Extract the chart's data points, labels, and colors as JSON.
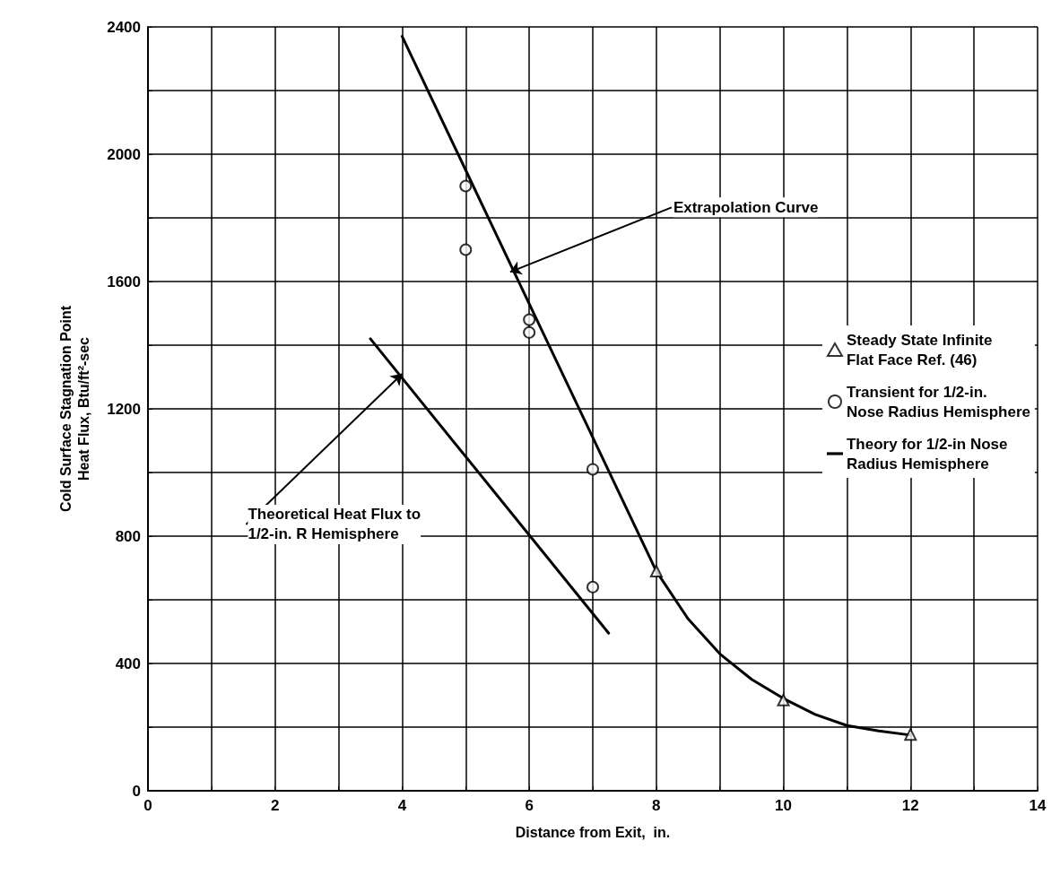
{
  "chart_data": {
    "type": "scatter",
    "xlabel": "Distance from Exit,  in.",
    "ylabel": "Cold Surface Stagnation Point\nHeat Flux, Btu/ft²-sec",
    "xlim": [
      0,
      14
    ],
    "ylim": [
      0,
      2400
    ],
    "xticks": [
      0,
      {
        "value": 1,
        "label": null
      },
      2,
      {
        "value": 3,
        "label": null
      },
      4,
      {
        "value": 5,
        "label": null
      },
      6,
      {
        "value": 7,
        "label": null
      },
      8,
      {
        "value": 9,
        "label": null
      },
      10,
      {
        "value": 11,
        "label": null
      },
      12,
      {
        "value": 13,
        "label": null
      },
      14
    ],
    "yticks": [
      0,
      {
        "value": 200,
        "label": null
      },
      400,
      {
        "value": 600,
        "label": null
      },
      800,
      {
        "value": 1000,
        "label": null
      },
      1200,
      {
        "value": 1400,
        "label": null
      },
      1600,
      {
        "value": 1800,
        "label": null
      },
      2000,
      {
        "value": 2200,
        "label": null
      },
      2400
    ],
    "grid": true,
    "legend": "right",
    "series": [
      {
        "name": "Steady State Infinite\nFlat Face Ref. (46)",
        "marker": "triangle",
        "color": "#000000",
        "x": [
          8,
          10,
          12
        ],
        "values": [
          690,
          285,
          177
        ]
      },
      {
        "name": "Transient for 1/2-in.\nNose Radius Hemisphere",
        "marker": "circle",
        "color": "#000000",
        "x": [
          5,
          5,
          6,
          6,
          7,
          7
        ],
        "values": [
          1900,
          1700,
          1480,
          1440,
          1010,
          640
        ]
      },
      {
        "name": "Theory for 1/2-in Nose\nRadius Hemisphere",
        "type": "line",
        "marker": "none",
        "color": "#000000",
        "x": [
          3.5,
          7.25
        ],
        "values": [
          1420,
          495
        ]
      },
      {
        "type": "line",
        "marker": "none",
        "color": "#000000",
        "x": [
          4,
          5,
          6,
          7,
          8,
          8.5,
          9,
          9.5,
          10,
          10.5,
          11,
          11.5,
          12
        ],
        "values": [
          2370,
          1950,
          1530,
          1110,
          690,
          540,
          430,
          350,
          290,
          240,
          205,
          188,
          175
        ]
      }
    ],
    "annotations": [
      {
        "text": "Extrapolation Curve",
        "x": 5.7,
        "y": 1630
      },
      {
        "text": "Theoretical Heat Flux to\n1/2-in. R Hemisphere",
        "x": 4,
        "y": 1310
      }
    ]
  }
}
